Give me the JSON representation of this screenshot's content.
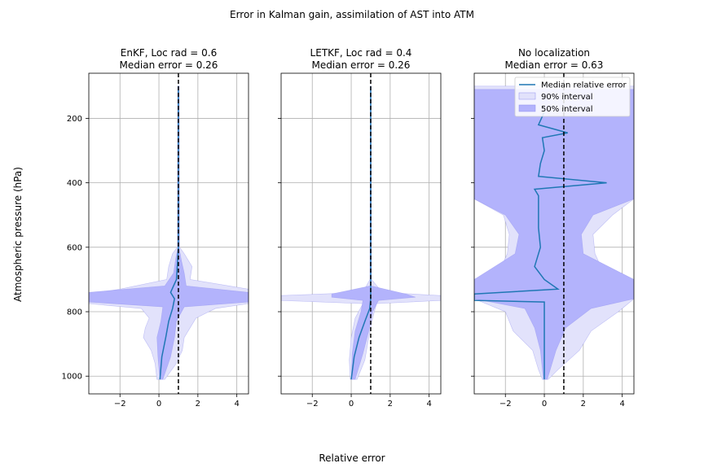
{
  "chart_data": {
    "type": "area",
    "title": "Error in Kalman gain, assimilation of AST into ATM",
    "xlabel": "Relative error",
    "ylabel": "Atmospheric pressure (hPa)",
    "xlim": [
      -3.6,
      4.6
    ],
    "ylim": [
      1055,
      60
    ],
    "y_inverted": true,
    "xticks": [
      -2,
      0,
      2,
      4
    ],
    "yticks": [
      200,
      400,
      600,
      800,
      1000
    ],
    "grid": true,
    "reference_line_x": 1,
    "legend": {
      "placement": "upper-right of third panel",
      "entries": [
        "Median relative error",
        "90% interval",
        "50% interval"
      ]
    },
    "colors": {
      "median": "#1f77b4",
      "interval90": "#e2e2fb",
      "interval50": "#b3b3fc",
      "interval_edge": "#8f8ff0",
      "reference": "#000000",
      "grid": "#b0b0b0"
    },
    "panels": [
      {
        "title": "EnKF, Loc rad = 0.6",
        "subtitle": "Median error = 0.26",
        "p90": [
          [
            100,
            0.96,
            1.04
          ],
          [
            600,
            0.94,
            1.06
          ],
          [
            620,
            0.7,
            1.3
          ],
          [
            660,
            0.5,
            1.7
          ],
          [
            700,
            0.4,
            1.6
          ],
          [
            730,
            -2.0,
            4.6
          ],
          [
            745,
            -3.6,
            4.6
          ],
          [
            775,
            -3.6,
            4.6
          ],
          [
            790,
            -0.9,
            2.9
          ],
          [
            820,
            -0.5,
            1.9
          ],
          [
            850,
            -0.7,
            1.6
          ],
          [
            880,
            -0.8,
            1.3
          ],
          [
            920,
            -0.4,
            1.2
          ],
          [
            960,
            -0.2,
            0.9
          ],
          [
            1010,
            -0.1,
            0.3
          ]
        ],
        "p50": [
          [
            100,
            0.98,
            1.02
          ],
          [
            600,
            0.97,
            1.03
          ],
          [
            640,
            0.85,
            1.15
          ],
          [
            680,
            0.75,
            1.3
          ],
          [
            720,
            0.3,
            1.4
          ],
          [
            740,
            -3.6,
            4.6
          ],
          [
            770,
            -3.6,
            4.6
          ],
          [
            785,
            0.2,
            1.3
          ],
          [
            830,
            0.1,
            0.9
          ],
          [
            880,
            -0.1,
            0.8
          ],
          [
            940,
            -0.05,
            0.6
          ],
          [
            1010,
            0.05,
            0.2
          ]
        ],
        "median": [
          [
            100,
            1.0
          ],
          [
            600,
            1.0
          ],
          [
            650,
            0.95
          ],
          [
            700,
            0.9
          ],
          [
            720,
            0.75
          ],
          [
            740,
            0.6
          ],
          [
            760,
            0.8
          ],
          [
            790,
            0.7
          ],
          [
            830,
            0.5
          ],
          [
            880,
            0.35
          ],
          [
            940,
            0.15
          ],
          [
            1010,
            0.05
          ]
        ]
      },
      {
        "title": "LETKF, Loc rad = 0.4",
        "subtitle": "Median error = 0.26",
        "p90": [
          [
            100,
            0.98,
            1.02
          ],
          [
            700,
            0.96,
            1.04
          ],
          [
            740,
            0.6,
            1.6
          ],
          [
            750,
            -3.6,
            4.6
          ],
          [
            765,
            -3.6,
            4.6
          ],
          [
            775,
            0.6,
            1.3
          ],
          [
            820,
            0.2,
            1.1
          ],
          [
            880,
            0.0,
            0.9
          ],
          [
            950,
            -0.1,
            0.7
          ],
          [
            1010,
            -0.05,
            0.3
          ]
        ],
        "p50": [
          [
            100,
            0.99,
            1.01
          ],
          [
            720,
            0.98,
            1.02
          ],
          [
            745,
            -1.0,
            2.8
          ],
          [
            755,
            -1.0,
            3.3
          ],
          [
            765,
            0.6,
            1.4
          ],
          [
            800,
            0.5,
            1.1
          ],
          [
            860,
            0.2,
            0.9
          ],
          [
            930,
            0.05,
            0.6
          ],
          [
            1010,
            0.0,
            0.2
          ]
        ],
        "median": [
          [
            100,
            1.0
          ],
          [
            700,
            1.0
          ],
          [
            760,
            1.0
          ],
          [
            790,
            0.95
          ],
          [
            830,
            0.7
          ],
          [
            880,
            0.4
          ],
          [
            940,
            0.15
          ],
          [
            1010,
            0.0
          ]
        ]
      },
      {
        "title": "No localization",
        "subtitle": "Median error = 0.63",
        "p90": [
          [
            100,
            -3.6,
            4.6
          ],
          [
            450,
            -3.6,
            4.6
          ],
          [
            500,
            -2.1,
            3.5
          ],
          [
            560,
            -1.8,
            2.5
          ],
          [
            620,
            -1.9,
            2.6
          ],
          [
            700,
            -2.5,
            3.2
          ],
          [
            760,
            -3.6,
            4.6
          ],
          [
            800,
            -2.0,
            3.8
          ],
          [
            860,
            -1.6,
            2.4
          ],
          [
            920,
            -0.6,
            1.8
          ],
          [
            980,
            -0.3,
            0.7
          ],
          [
            1010,
            -0.1,
            0.2
          ]
        ],
        "p50": [
          [
            110,
            -3.6,
            4.6
          ],
          [
            450,
            -3.6,
            4.6
          ],
          [
            500,
            -2.0,
            2.5
          ],
          [
            560,
            -1.3,
            1.9
          ],
          [
            620,
            -1.5,
            2.0
          ],
          [
            700,
            -3.6,
            4.6
          ],
          [
            760,
            -3.6,
            4.6
          ],
          [
            790,
            -1.0,
            2.4
          ],
          [
            850,
            -0.5,
            1.1
          ],
          [
            920,
            -0.2,
            0.6
          ],
          [
            1010,
            -0.05,
            0.15
          ]
        ],
        "median": [
          [
            180,
            0.0
          ],
          [
            220,
            -0.3
          ],
          [
            245,
            1.2
          ],
          [
            260,
            -0.1
          ],
          [
            300,
            0.0
          ],
          [
            340,
            -0.2
          ],
          [
            380,
            -0.3
          ],
          [
            400,
            3.2
          ],
          [
            420,
            -0.5
          ],
          [
            440,
            -0.3
          ],
          [
            480,
            -0.3
          ],
          [
            540,
            -0.3
          ],
          [
            600,
            -0.2
          ],
          [
            660,
            -0.5
          ],
          [
            700,
            0.0
          ],
          [
            730,
            0.7
          ],
          [
            745,
            -3.6
          ],
          [
            765,
            -3.6
          ],
          [
            770,
            0.0
          ],
          [
            820,
            0.0
          ],
          [
            900,
            0.0
          ],
          [
            1010,
            0.0
          ]
        ]
      }
    ]
  }
}
